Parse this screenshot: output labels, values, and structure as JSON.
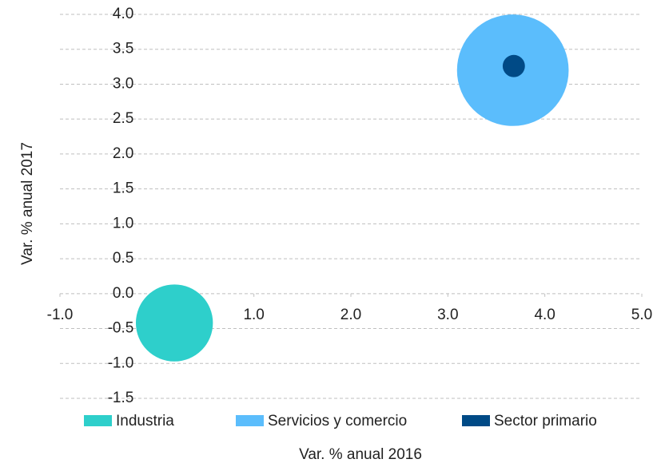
{
  "chart_data": {
    "type": "bubble",
    "xlabel": "Var. % anual 2016",
    "ylabel": "Var. % anual 2017",
    "xlim": [
      -1.0,
      5.0
    ],
    "ylim": [
      -1.5,
      4.0
    ],
    "xticks": [
      {
        "value": -1,
        "label": "-1.0"
      },
      {
        "value": 0,
        "label": "0.0"
      },
      {
        "value": 1,
        "label": "1.0"
      },
      {
        "value": 2,
        "label": "2.0"
      },
      {
        "value": 3,
        "label": "3.0"
      },
      {
        "value": 4,
        "label": "4.0"
      },
      {
        "value": 5,
        "label": "5.0"
      }
    ],
    "yticks": [
      {
        "value": -1.5,
        "label": "-1.5"
      },
      {
        "value": -1,
        "label": "-1.0"
      },
      {
        "value": -0.5,
        "label": "-0.5"
      },
      {
        "value": 0,
        "label": "0.0"
      },
      {
        "value": 0.5,
        "label": "0.5"
      },
      {
        "value": 1,
        "label": "1.0"
      },
      {
        "value": 1.5,
        "label": "1.5"
      },
      {
        "value": 2,
        "label": "2.0"
      },
      {
        "value": 2.5,
        "label": "2.5"
      },
      {
        "value": 3,
        "label": "3.0"
      },
      {
        "value": 3.5,
        "label": "3.5"
      },
      {
        "value": 4,
        "label": "4.0"
      }
    ],
    "grid": true,
    "legend": "bottom",
    "series": [
      {
        "name": "Industria",
        "color": "#2ecfcb",
        "x": [
          0.18
        ],
        "y": [
          -0.42
        ],
        "size": [
          30
        ]
      },
      {
        "name": "Servicios y comercio",
        "color": "#5bbdfc",
        "x": [
          3.67
        ],
        "y": [
          3.2
        ],
        "size": [
          63
        ]
      },
      {
        "name": "Sector primario",
        "color": "#004a86",
        "x": [
          3.68
        ],
        "y": [
          3.26
        ],
        "size": [
          2.5
        ]
      }
    ]
  }
}
